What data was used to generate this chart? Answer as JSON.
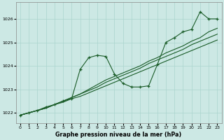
{
  "title": "Graphe pression niveau de la mer (hPa)",
  "bg_color": "#cce8e4",
  "grid_color": "#aad4ce",
  "line_color": "#1a5c28",
  "xlim": [
    -0.5,
    23.5
  ],
  "ylim": [
    1021.55,
    1026.7
  ],
  "yticks": [
    1022,
    1023,
    1024,
    1025,
    1026
  ],
  "xticks": [
    0,
    1,
    2,
    3,
    4,
    5,
    6,
    7,
    8,
    9,
    10,
    11,
    12,
    13,
    14,
    15,
    16,
    17,
    18,
    19,
    20,
    21,
    22,
    23
  ],
  "line_straight1": [
    1021.9,
    1022.0,
    1022.1,
    1022.2,
    1022.35,
    1022.45,
    1022.6,
    1022.7,
    1022.85,
    1023.0,
    1023.15,
    1023.3,
    1023.45,
    1023.6,
    1023.75,
    1023.9,
    1024.05,
    1024.2,
    1024.35,
    1024.5,
    1024.65,
    1024.8,
    1024.95,
    1025.1
  ],
  "line_straight2": [
    1021.9,
    1022.0,
    1022.1,
    1022.2,
    1022.35,
    1022.5,
    1022.65,
    1022.8,
    1022.95,
    1023.1,
    1023.3,
    1023.45,
    1023.6,
    1023.75,
    1023.9,
    1024.1,
    1024.25,
    1024.4,
    1024.55,
    1024.7,
    1024.9,
    1025.05,
    1025.2,
    1025.35
  ],
  "line_straight3": [
    1021.9,
    1022.0,
    1022.1,
    1022.2,
    1022.35,
    1022.5,
    1022.65,
    1022.8,
    1023.0,
    1023.2,
    1023.4,
    1023.55,
    1023.7,
    1023.85,
    1024.0,
    1024.2,
    1024.35,
    1024.55,
    1024.7,
    1024.85,
    1025.05,
    1025.2,
    1025.45,
    1025.6
  ],
  "line_wavy_x": [
    0,
    1,
    2,
    3,
    4,
    5,
    6,
    7,
    8,
    9,
    10,
    11,
    12,
    13,
    14,
    15,
    16,
    17,
    18,
    19,
    20,
    21,
    22,
    23
  ],
  "line_wavy_y": [
    1021.9,
    1022.0,
    1022.1,
    1022.25,
    1022.35,
    1022.5,
    1022.6,
    1023.85,
    1024.35,
    1024.45,
    1024.4,
    1023.65,
    1023.25,
    1023.1,
    1023.1,
    1023.15,
    1024.05,
    1025.0,
    1025.2,
    1025.45,
    1025.55,
    1026.3,
    1026.0,
    1026.0
  ]
}
